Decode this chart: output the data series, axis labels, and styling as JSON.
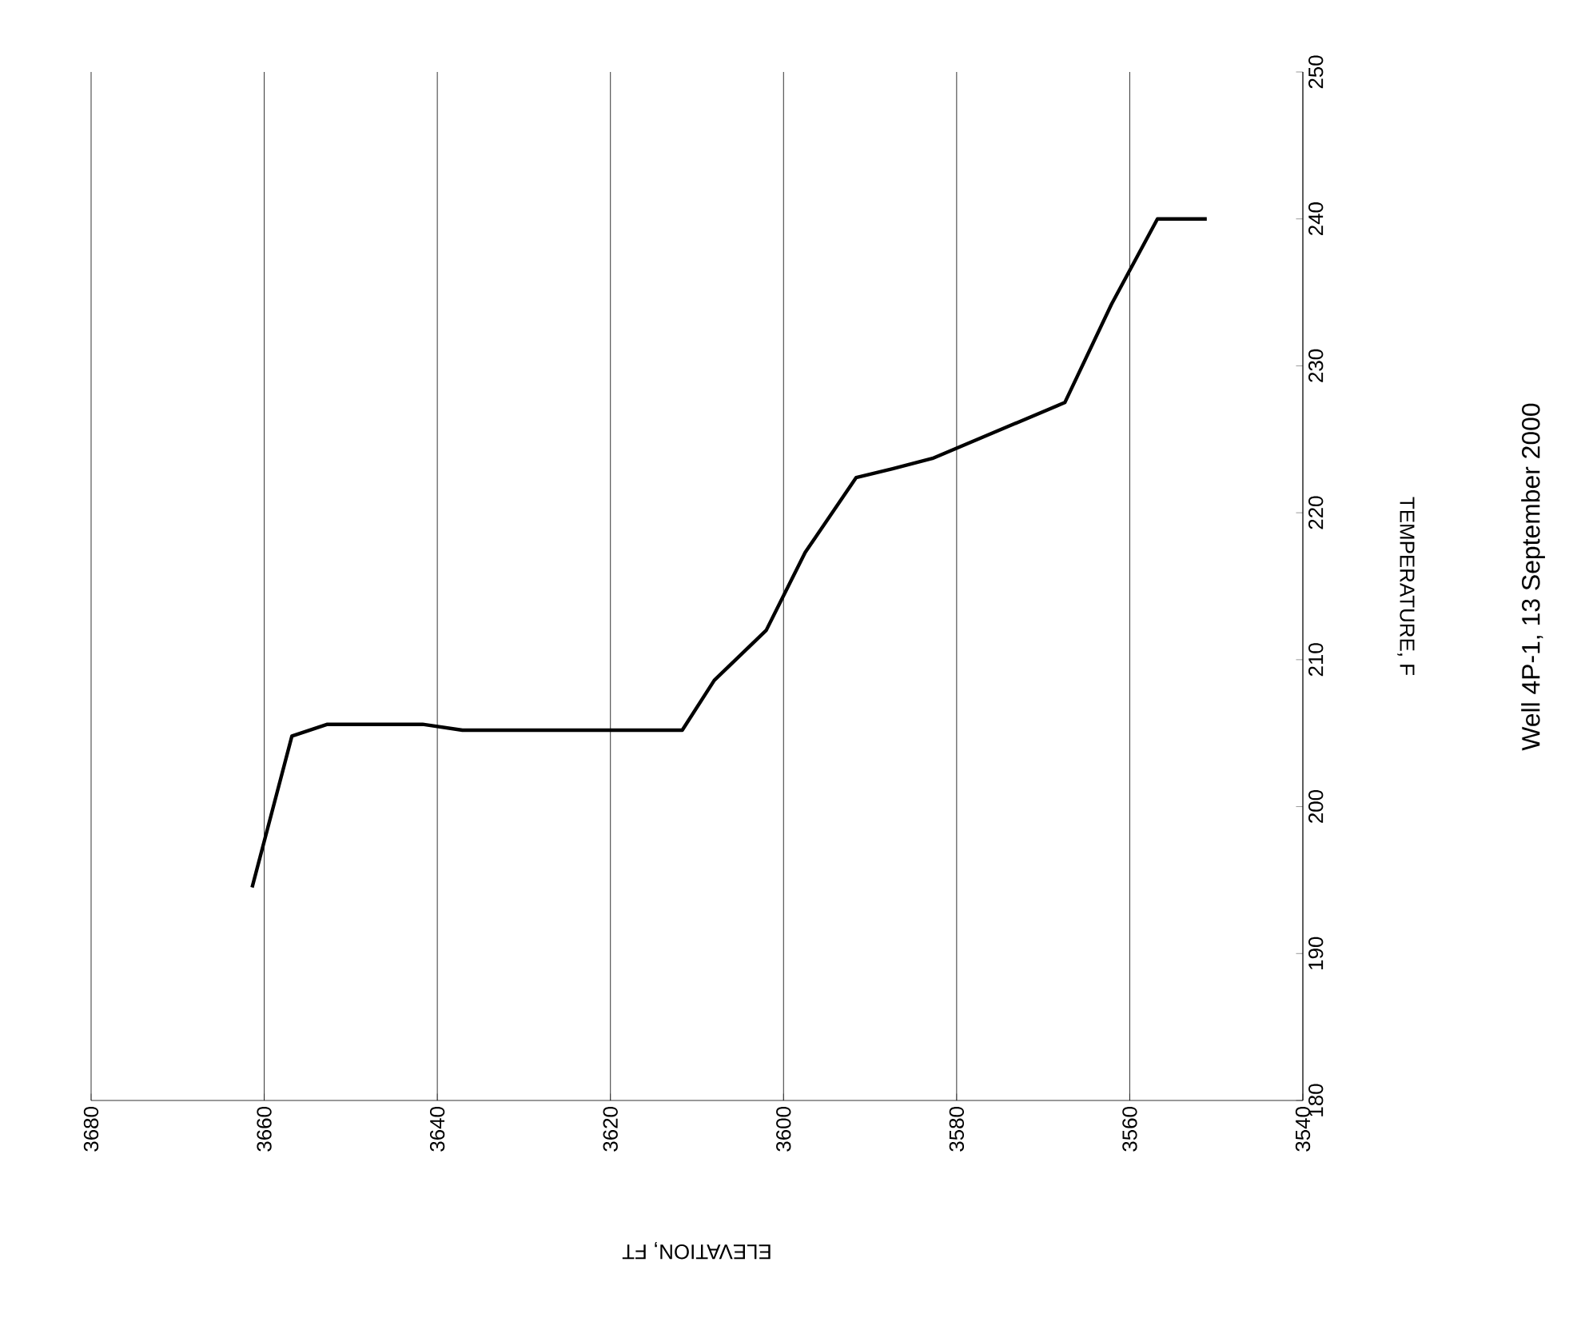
{
  "chart_data": {
    "type": "line",
    "title": "Well 4P-1, 13 September 2000",
    "xlabel": "ELEVATION, FT",
    "ylabel": "TEMPERATURE, F",
    "x": [
      3661.4,
      3656.8,
      3652.7,
      3646.3,
      3641.7,
      3637.1,
      3611.7,
      3608,
      3602,
      3597.5,
      3591.6,
      3587.4,
      3582.8,
      3567.5,
      3562.1,
      3556.8,
      3551.1
    ],
    "series": [
      {
        "color": "#000000",
        "values": [
          194.5,
          204.8,
          205.6,
          205.6,
          205.6,
          205.2,
          205.2,
          208.6,
          212,
          217.3,
          222.4,
          223,
          223.7,
          227.5,
          234.2,
          240,
          240
        ]
      }
    ],
    "xlim": [
      3680,
      3540
    ],
    "xticks": [
      3680,
      3660,
      3640,
      3620,
      3600,
      3580,
      3560,
      3540
    ],
    "ylim": [
      180,
      250
    ],
    "yticks": [
      180,
      190,
      200,
      210,
      220,
      230,
      240,
      250
    ],
    "grid": "x",
    "marker": "none",
    "line_style": "solid"
  }
}
